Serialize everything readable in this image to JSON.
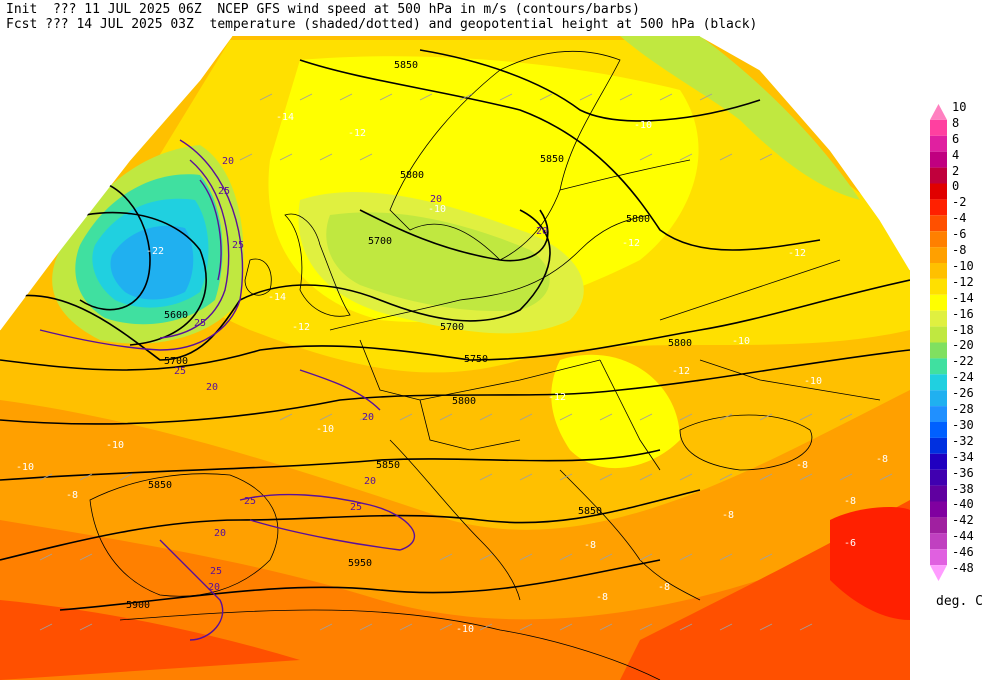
{
  "header": {
    "line1": "Init  ??? 11 JUL 2025 06Z  NCEP GFS wind speed at 500 hPa in m/s (contours/barbs)",
    "line2": "Fcst ??? 14 JUL 2025 03Z  temperature (shaded/dotted) and geopotential height at 500 hPa (black)"
  },
  "legend": {
    "units": "deg. C",
    "labels": [
      "10",
      "8",
      "6",
      "4",
      "2",
      "0",
      "-2",
      "-4",
      "-6",
      "-8",
      "-10",
      "-12",
      "-14",
      "-16",
      "-18",
      "-20",
      "-22",
      "-24",
      "-26",
      "-28",
      "-30",
      "-32",
      "-34",
      "-36",
      "-38",
      "-40",
      "-42",
      "-44",
      "-46",
      "-48"
    ],
    "colors": [
      "#ff80c0",
      "#ff40a0",
      "#e020a0",
      "#c00080",
      "#c0003c",
      "#e00000",
      "#ff2000",
      "#ff5000",
      "#ff8000",
      "#ffa000",
      "#ffc000",
      "#ffe000",
      "#ffff00",
      "#e0f040",
      "#c0e840",
      "#80e060",
      "#40e0a0",
      "#20d0e0",
      "#20b0f0",
      "#2090ff",
      "#0060ff",
      "#0030e0",
      "#2000c0",
      "#4000b0",
      "#6000a0",
      "#8000a0",
      "#a020a0",
      "#c040c0",
      "#e060e0",
      "#ff9cff"
    ]
  },
  "height_labels": [
    "5850",
    "5850",
    "5800",
    "5800",
    "5800",
    "5700",
    "5700",
    "5750",
    "5800",
    "5850",
    "5850",
    "5850",
    "5900",
    "5950",
    "5600",
    "5700"
  ],
  "wind_labels": [
    "20",
    "25",
    "25",
    "20",
    "20",
    "25",
    "20",
    "20",
    "25",
    "20",
    "25",
    "20",
    "20",
    "25",
    "25"
  ],
  "temp_labels": [
    "-14",
    "-12",
    "-10",
    "-10",
    "-12",
    "-12",
    "-12",
    "-10",
    "-14",
    "-12",
    "-22",
    "-10",
    "-10",
    "-8",
    "-8",
    "-8",
    "-10",
    "-12",
    "-10",
    "-8",
    "-8",
    "-8",
    "-8",
    "-6",
    "-8",
    "-10"
  ]
}
